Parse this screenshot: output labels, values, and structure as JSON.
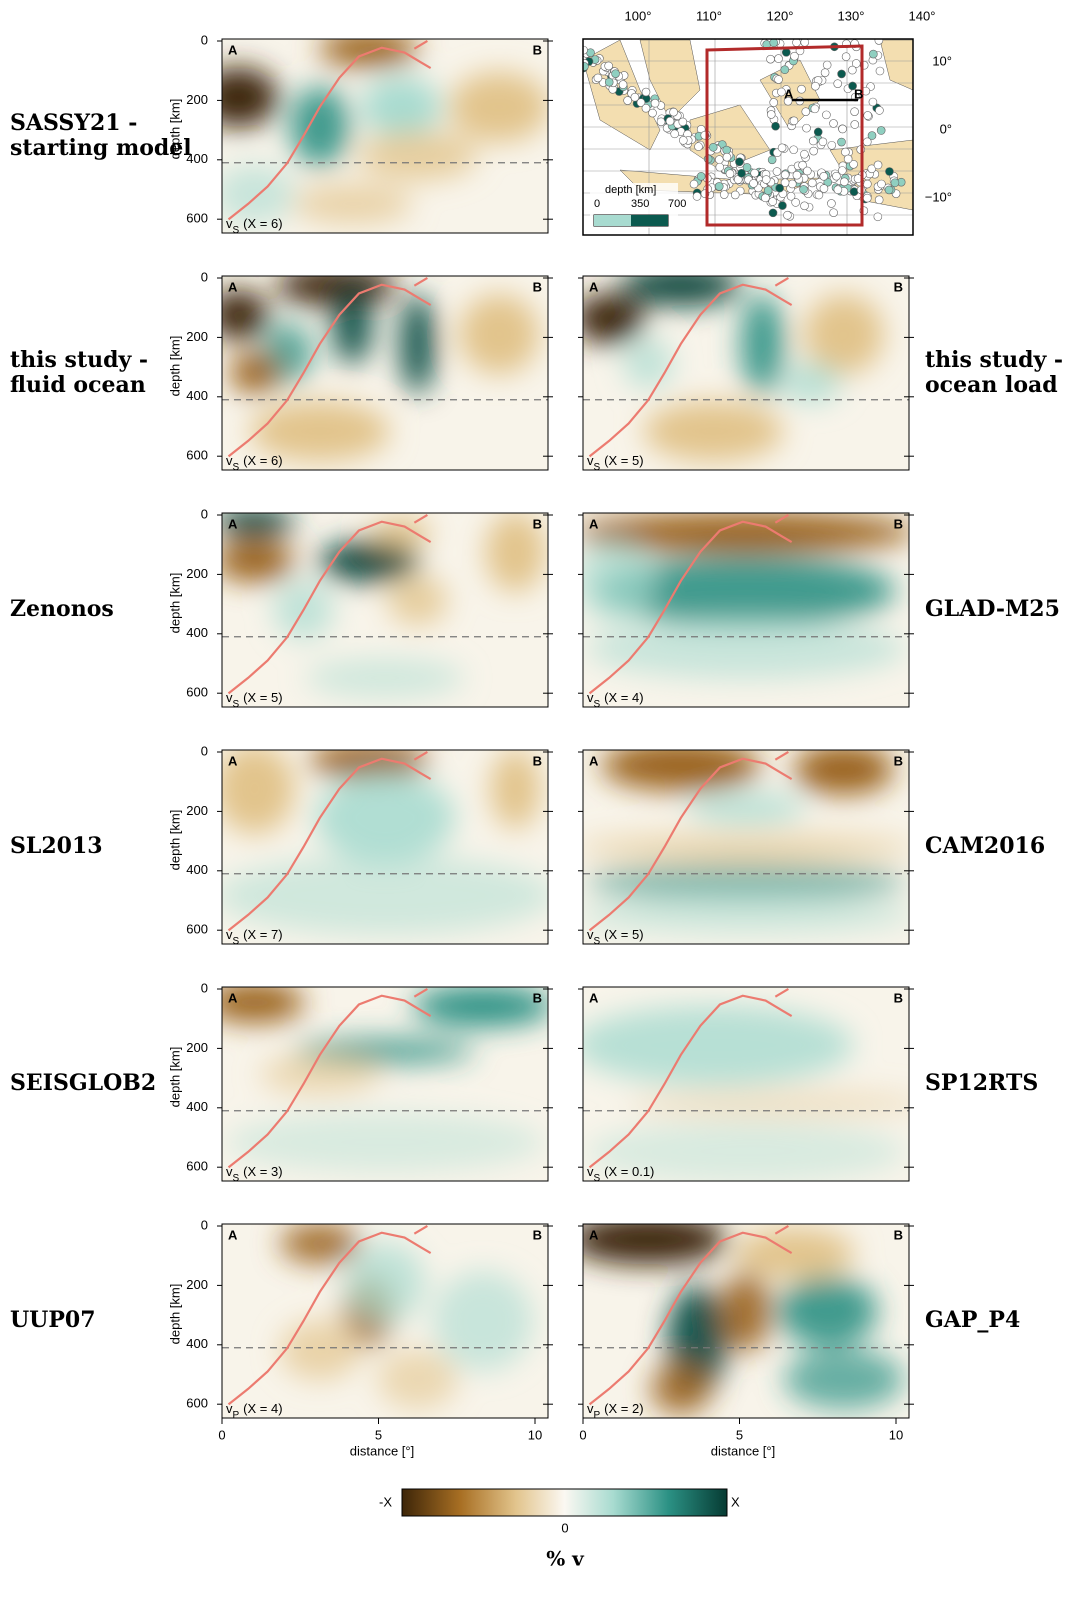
{
  "panels": [
    {
      "label": [
        "SASSY21 -",
        "starting model"
      ],
      "wave": "v",
      "component": "S",
      "scale": "(X = 6)"
    },
    {
      "label": [
        "this study -",
        "fluid ocean"
      ],
      "wave": "v",
      "component": "S",
      "scale": "(X = 6)"
    },
    {
      "label": [
        "this study -",
        "ocean load"
      ],
      "wave": "v",
      "component": "S",
      "scale": "(X = 5)"
    },
    {
      "label": [
        "Zenonos"
      ],
      "wave": "v",
      "component": "S",
      "scale": "(X = 5)"
    },
    {
      "label": [
        "GLAD-M25"
      ],
      "wave": "v",
      "component": "S",
      "scale": "(X = 4)"
    },
    {
      "label": [
        "SL2013"
      ],
      "wave": "v",
      "component": "S",
      "scale": "(X = 7)"
    },
    {
      "label": [
        "CAM2016"
      ],
      "wave": "v",
      "component": "S",
      "scale": "(X = 5)"
    },
    {
      "label": [
        "SEISGLOB2"
      ],
      "wave": "v",
      "component": "S",
      "scale": "(X = 3)"
    },
    {
      "label": [
        "SP12RTS"
      ],
      "wave": "v",
      "component": "S",
      "scale": "(X = 0.1)"
    },
    {
      "label": [
        "UUP07"
      ],
      "wave": "v",
      "component": "P",
      "scale": "(X = 4)"
    },
    {
      "label": [
        "GAP_P4"
      ],
      "wave": "v",
      "component": "P",
      "scale": "(X = 2)"
    }
  ],
  "section_ends": [
    "A",
    "B"
  ],
  "depth_axis": {
    "title": "depth [km]",
    "ticks": [
      "0",
      "200",
      "400",
      "600"
    ]
  },
  "distance_axis": {
    "title": "distance [°]",
    "ticks": [
      "0",
      "5",
      "10"
    ]
  },
  "map": {
    "lon_ticks": [
      "100°",
      "110°",
      "120°",
      "130°",
      "140°"
    ],
    "lat_ticks": [
      "10°",
      "0°",
      "−10°"
    ],
    "legend_title": "depth [km]",
    "legend_ticks": [
      "0",
      "350",
      "700"
    ]
  },
  "colorbar": {
    "min": "-X",
    "mid": "0",
    "max": "X",
    "title": "% v"
  }
}
